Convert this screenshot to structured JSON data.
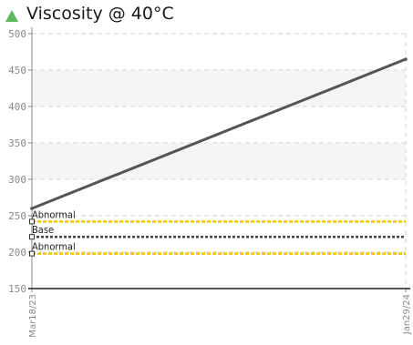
{
  "chart_data": {
    "type": "line",
    "title": "Viscosity @ 40°C",
    "status_color": "#5cb85c",
    "ylim": [
      150,
      500
    ],
    "yticks": [
      "500",
      "450",
      "400",
      "350",
      "300",
      "250",
      "200",
      "150"
    ],
    "x": [
      "Mar18/23",
      "Jan29/24"
    ],
    "series": [
      {
        "values": [
          260,
          465
        ],
        "color": "#555555"
      }
    ],
    "reference_lines": [
      {
        "label": "Abnormal",
        "value": 242,
        "color": "#f5c400",
        "style": "dashed"
      },
      {
        "label": "Base",
        "value": 221,
        "color": "#444444",
        "style": "dotted"
      },
      {
        "label": "Abnormal",
        "value": 198,
        "color": "#f5c400",
        "style": "dashed"
      }
    ],
    "bands": [
      {
        "from": 400,
        "to": 450,
        "color": "#f5f5f5"
      },
      {
        "from": 300,
        "to": 350,
        "color": "#f5f5f5"
      }
    ],
    "grid": true
  }
}
